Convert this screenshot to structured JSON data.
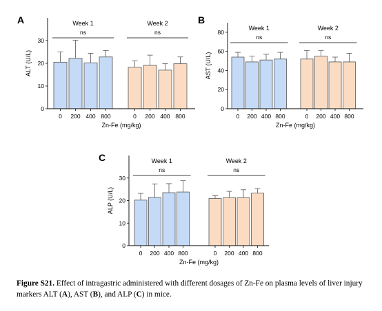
{
  "charts": [
    {
      "panel_label": "A",
      "ylabel": "ALT (U/L)",
      "xlabel": "Zn-Fe (mg/kg)",
      "ylim": [
        0,
        40
      ],
      "yticks": [
        0,
        10,
        20,
        30
      ],
      "groups": [
        {
          "name": "Week 1",
          "annotation": "ns",
          "color": "#c5daf6",
          "categories": [
            "0",
            "200",
            "400",
            "800"
          ],
          "values": [
            20.5,
            22.2,
            20.2,
            22.8
          ],
          "errors": [
            4.5,
            8.0,
            4.2,
            2.8
          ]
        },
        {
          "name": "Week 2",
          "annotation": "ns",
          "color": "#fbdcc3",
          "categories": [
            "0",
            "200",
            "400",
            "800"
          ],
          "values": [
            18.3,
            19.1,
            17.0,
            19.8
          ],
          "errors": [
            2.8,
            4.5,
            2.8,
            3.0
          ]
        }
      ]
    },
    {
      "panel_label": "B",
      "ylabel": "AST (U/L)",
      "xlabel": "Zn-Fe (mg/kg)",
      "ylim": [
        0,
        90
      ],
      "yticks": [
        0,
        20,
        40,
        60,
        80
      ],
      "groups": [
        {
          "name": "Week 1",
          "annotation": "ns",
          "color": "#c5daf6",
          "categories": [
            "0",
            "200",
            "400",
            "800"
          ],
          "values": [
            54,
            49,
            51,
            52
          ],
          "errors": [
            5,
            6,
            6,
            7
          ]
        },
        {
          "name": "Week 2",
          "annotation": "ns",
          "color": "#fbdcc3",
          "categories": [
            "0",
            "200",
            "400",
            "800"
          ],
          "values": [
            52,
            55,
            49,
            49
          ],
          "errors": [
            9,
            6,
            5,
            9
          ]
        }
      ]
    },
    {
      "panel_label": "C",
      "ylabel": "ALP (U/L)",
      "xlabel": "Zn-Fe (mg/kg)",
      "ylim": [
        0,
        40
      ],
      "yticks": [
        0,
        10,
        20,
        30
      ],
      "groups": [
        {
          "name": "Week 1",
          "annotation": "ns",
          "color": "#c5daf6",
          "categories": [
            "0",
            "200",
            "400",
            "800"
          ],
          "values": [
            20.2,
            21.4,
            23.5,
            23.8
          ],
          "errors": [
            3.0,
            6.0,
            4.0,
            5.0
          ]
        },
        {
          "name": "Week 2",
          "annotation": "ns",
          "color": "#fbdcc3",
          "categories": [
            "0",
            "200",
            "400",
            "800"
          ],
          "values": [
            20.9,
            21.3,
            21.3,
            23.3
          ],
          "errors": [
            1.3,
            2.8,
            3.5,
            2.0
          ]
        }
      ]
    }
  ],
  "chart_data": [
    {
      "type": "bar",
      "title": "",
      "xlabel": "Zn-Fe (mg/kg)",
      "ylabel": "ALT (U/L)",
      "ylim": [
        0,
        40
      ],
      "categories": [
        "0",
        "200",
        "400",
        "800"
      ],
      "series": [
        {
          "name": "Week 1",
          "values": [
            20.5,
            22.2,
            20.2,
            22.8
          ]
        },
        {
          "name": "Week 2",
          "values": [
            18.3,
            19.1,
            17.0,
            19.8
          ]
        }
      ]
    },
    {
      "type": "bar",
      "title": "",
      "xlabel": "Zn-Fe (mg/kg)",
      "ylabel": "AST (U/L)",
      "ylim": [
        0,
        90
      ],
      "categories": [
        "0",
        "200",
        "400",
        "800"
      ],
      "series": [
        {
          "name": "Week 1",
          "values": [
            54,
            49,
            51,
            52
          ]
        },
        {
          "name": "Week 2",
          "values": [
            52,
            55,
            49,
            49
          ]
        }
      ]
    },
    {
      "type": "bar",
      "title": "",
      "xlabel": "Zn-Fe (mg/kg)",
      "ylabel": "ALP (U/L)",
      "ylim": [
        0,
        40
      ],
      "categories": [
        "0",
        "200",
        "400",
        "800"
      ],
      "series": [
        {
          "name": "Week 1",
          "values": [
            20.2,
            21.4,
            23.5,
            23.8
          ]
        },
        {
          "name": "Week 2",
          "values": [
            20.9,
            21.3,
            21.3,
            23.3
          ]
        }
      ]
    }
  ],
  "caption": {
    "label": "Figure S21.",
    "text": " Effect of intragastric administered with different dosages of Zn-Fe on plasma levels of liver injury markers ALT (",
    "a": "A",
    "sep1": "), AST (",
    "b": "B",
    "sep2": "), and ALP (",
    "c": "C",
    "end": ") in mice."
  }
}
